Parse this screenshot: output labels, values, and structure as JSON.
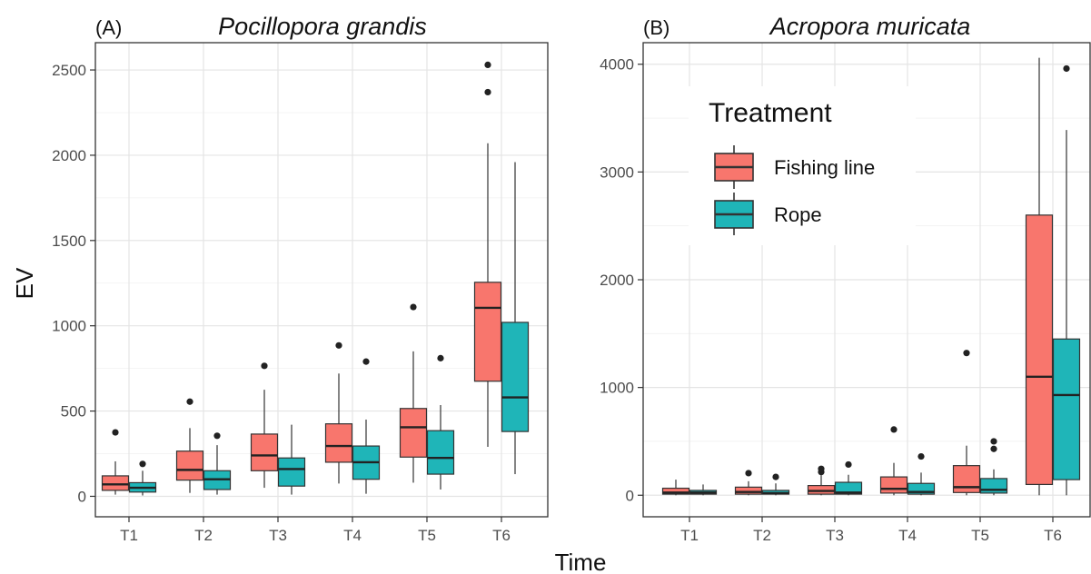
{
  "xlabel": "Time",
  "ylabel": "EV",
  "legend": {
    "title": "Treatment",
    "entries": [
      {
        "name": "Fishing line",
        "color": "#F8766D"
      },
      {
        "name": "Rope",
        "color": "#1FB5B8"
      }
    ]
  },
  "panels": [
    {
      "label": "(A)",
      "title": "Pocillopora grandis"
    },
    {
      "label": "(B)",
      "title": "Acropora muricata"
    }
  ],
  "chart_data": [
    {
      "type": "box",
      "panel_label": "(A)",
      "title": "Pocillopora grandis",
      "xlabel": "Time",
      "ylabel": "EV",
      "categories": [
        "T1",
        "T2",
        "T3",
        "T4",
        "T5",
        "T6"
      ],
      "ylim": [
        -120,
        2660
      ],
      "yticks": [
        0,
        500,
        1000,
        1500,
        2000,
        2500
      ],
      "grid": true,
      "series": [
        {
          "name": "Fishing line",
          "color": "#F8766D",
          "boxes": [
            {
              "min": 10,
              "q1": 35,
              "median": 70,
              "q3": 120,
              "max": 205,
              "outliers": [
                375
              ]
            },
            {
              "min": 20,
              "q1": 95,
              "median": 155,
              "q3": 265,
              "max": 400,
              "outliers": [
                555
              ]
            },
            {
              "min": 50,
              "q1": 150,
              "median": 240,
              "q3": 365,
              "max": 625,
              "outliers": [
                765
              ]
            },
            {
              "min": 75,
              "q1": 200,
              "median": 295,
              "q3": 425,
              "max": 720,
              "outliers": [
                885
              ]
            },
            {
              "min": 80,
              "q1": 230,
              "median": 405,
              "q3": 515,
              "max": 850,
              "outliers": [
                1110
              ]
            },
            {
              "min": 290,
              "q1": 675,
              "median": 1105,
              "q3": 1255,
              "max": 2070,
              "outliers": [
                2370,
                2530
              ]
            }
          ]
        },
        {
          "name": "Rope",
          "color": "#1FB5B8",
          "boxes": [
            {
              "min": 5,
              "q1": 25,
              "median": 50,
              "q3": 80,
              "max": 150,
              "outliers": [
                190
              ]
            },
            {
              "min": 10,
              "q1": 40,
              "median": 100,
              "q3": 150,
              "max": 300,
              "outliers": [
                355
              ]
            },
            {
              "min": 10,
              "q1": 60,
              "median": 160,
              "q3": 225,
              "max": 420,
              "outliers": []
            },
            {
              "min": 15,
              "q1": 100,
              "median": 200,
              "q3": 295,
              "max": 450,
              "outliers": [
                790
              ]
            },
            {
              "min": 40,
              "q1": 130,
              "median": 225,
              "q3": 385,
              "max": 535,
              "outliers": [
                810
              ]
            },
            {
              "min": 130,
              "q1": 380,
              "median": 580,
              "q3": 1020,
              "max": 1960,
              "outliers": []
            }
          ]
        }
      ]
    },
    {
      "type": "box",
      "panel_label": "(B)",
      "title": "Acropora muricata",
      "xlabel": "Time",
      "ylabel": "EV",
      "categories": [
        "T1",
        "T2",
        "T3",
        "T4",
        "T5",
        "T6"
      ],
      "ylim": [
        -200,
        4200
      ],
      "yticks": [
        0,
        1000,
        2000,
        3000,
        4000
      ],
      "grid": true,
      "series": [
        {
          "name": "Fishing line",
          "color": "#F8766D",
          "boxes": [
            {
              "min": 0,
              "q1": 10,
              "median": 25,
              "q3": 65,
              "max": 145,
              "outliers": []
            },
            {
              "min": 0,
              "q1": 10,
              "median": 30,
              "q3": 75,
              "max": 130,
              "outliers": [
                205
              ]
            },
            {
              "min": 0,
              "q1": 10,
              "median": 40,
              "q3": 90,
              "max": 185,
              "outliers": [
                215,
                245
              ]
            },
            {
              "min": 0,
              "q1": 20,
              "median": 60,
              "q3": 170,
              "max": 300,
              "outliers": [
                610
              ]
            },
            {
              "min": 0,
              "q1": 25,
              "median": 75,
              "q3": 275,
              "max": 460,
              "outliers": [
                1320
              ]
            },
            {
              "min": 0,
              "q1": 100,
              "median": 1100,
              "q3": 2600,
              "max": 4060,
              "outliers": []
            }
          ]
        },
        {
          "name": "Rope",
          "color": "#1FB5B8",
          "boxes": [
            {
              "min": 0,
              "q1": 10,
              "median": 25,
              "q3": 45,
              "max": 100,
              "outliers": []
            },
            {
              "min": 0,
              "q1": 10,
              "median": 20,
              "q3": 45,
              "max": 110,
              "outliers": [
                170
              ]
            },
            {
              "min": 0,
              "q1": 10,
              "median": 25,
              "q3": 120,
              "max": 190,
              "outliers": [
                285
              ]
            },
            {
              "min": 0,
              "q1": 10,
              "median": 30,
              "q3": 110,
              "max": 210,
              "outliers": [
                360
              ]
            },
            {
              "min": 0,
              "q1": 20,
              "median": 50,
              "q3": 155,
              "max": 240,
              "outliers": [
                430,
                500
              ]
            },
            {
              "min": 0,
              "q1": 145,
              "median": 930,
              "q3": 1450,
              "max": 3390,
              "outliers": [
                3960
              ]
            }
          ]
        }
      ]
    }
  ]
}
